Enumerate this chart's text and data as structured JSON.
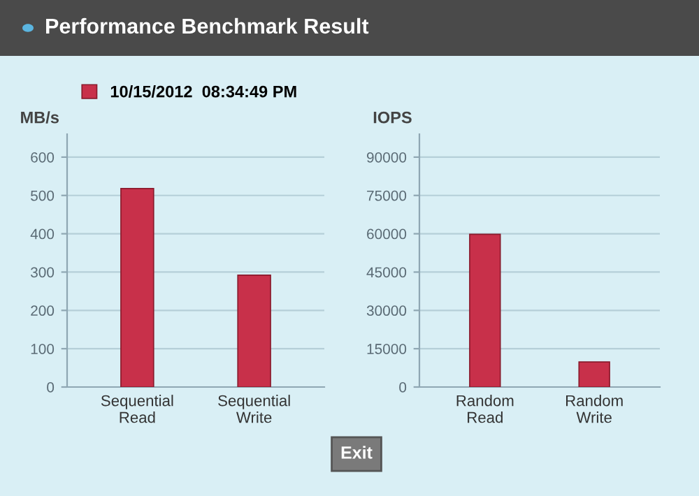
{
  "chart_data": [
    {
      "type": "bar",
      "title": "Performance Benchmark Result",
      "ylabel": "MB/s",
      "categories": [
        "Sequential\nRead",
        "Sequential\nWrite"
      ],
      "series": [
        {
          "name": "10/15/2012  08:34:49 PM",
          "color": "#c8304a",
          "values": [
            518,
            292
          ]
        }
      ],
      "ylim": [
        0,
        660
      ],
      "yticks": [
        0,
        100,
        200,
        300,
        400,
        500,
        600
      ],
      "grid": "y",
      "legend": "top left"
    },
    {
      "type": "bar",
      "ylabel": "IOPS",
      "categories": [
        "Random\nRead",
        "Random\nWrite"
      ],
      "series": [
        {
          "color": "#c8304a",
          "values": [
            59800,
            9800
          ]
        }
      ],
      "ylim": [
        0,
        99000
      ],
      "yticks": [
        0,
        15000,
        30000,
        45000,
        60000,
        75000,
        90000
      ],
      "grid": "y",
      "annotations": [
        "Exit"
      ]
    }
  ]
}
